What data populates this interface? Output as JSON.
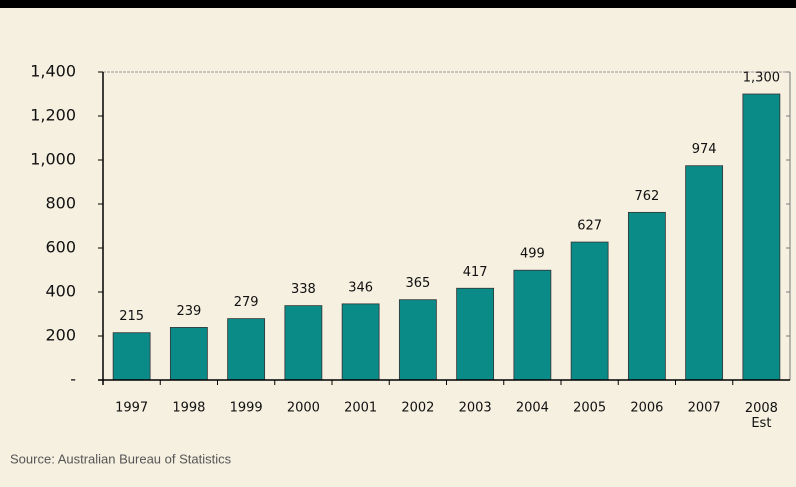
{
  "chart_data": {
    "type": "bar",
    "categories": [
      "1997",
      "1998",
      "1999",
      "2000",
      "2001",
      "2002",
      "2003",
      "2004",
      "2005",
      "2006",
      "2007",
      "2008 Est"
    ],
    "values": [
      215,
      239,
      279,
      338,
      346,
      365,
      417,
      499,
      627,
      762,
      974,
      1300
    ],
    "value_labels": [
      "215",
      "239",
      "279",
      "338",
      "346",
      "365",
      "417",
      "499",
      "627",
      "762",
      "974",
      "1,300"
    ],
    "color": "#0a8b88",
    "ylim": [
      0,
      1400
    ],
    "yticks": [
      {
        "value": 0,
        "label": "-"
      },
      200,
      400,
      600,
      800,
      {
        "value": 1000,
        "label": "1,000"
      },
      {
        "value": 1200,
        "label": "1,200"
      },
      {
        "value": 1400,
        "label": "1,400"
      }
    ],
    "grid": false,
    "source": "Source: Australian Bureau of Statistics"
  }
}
